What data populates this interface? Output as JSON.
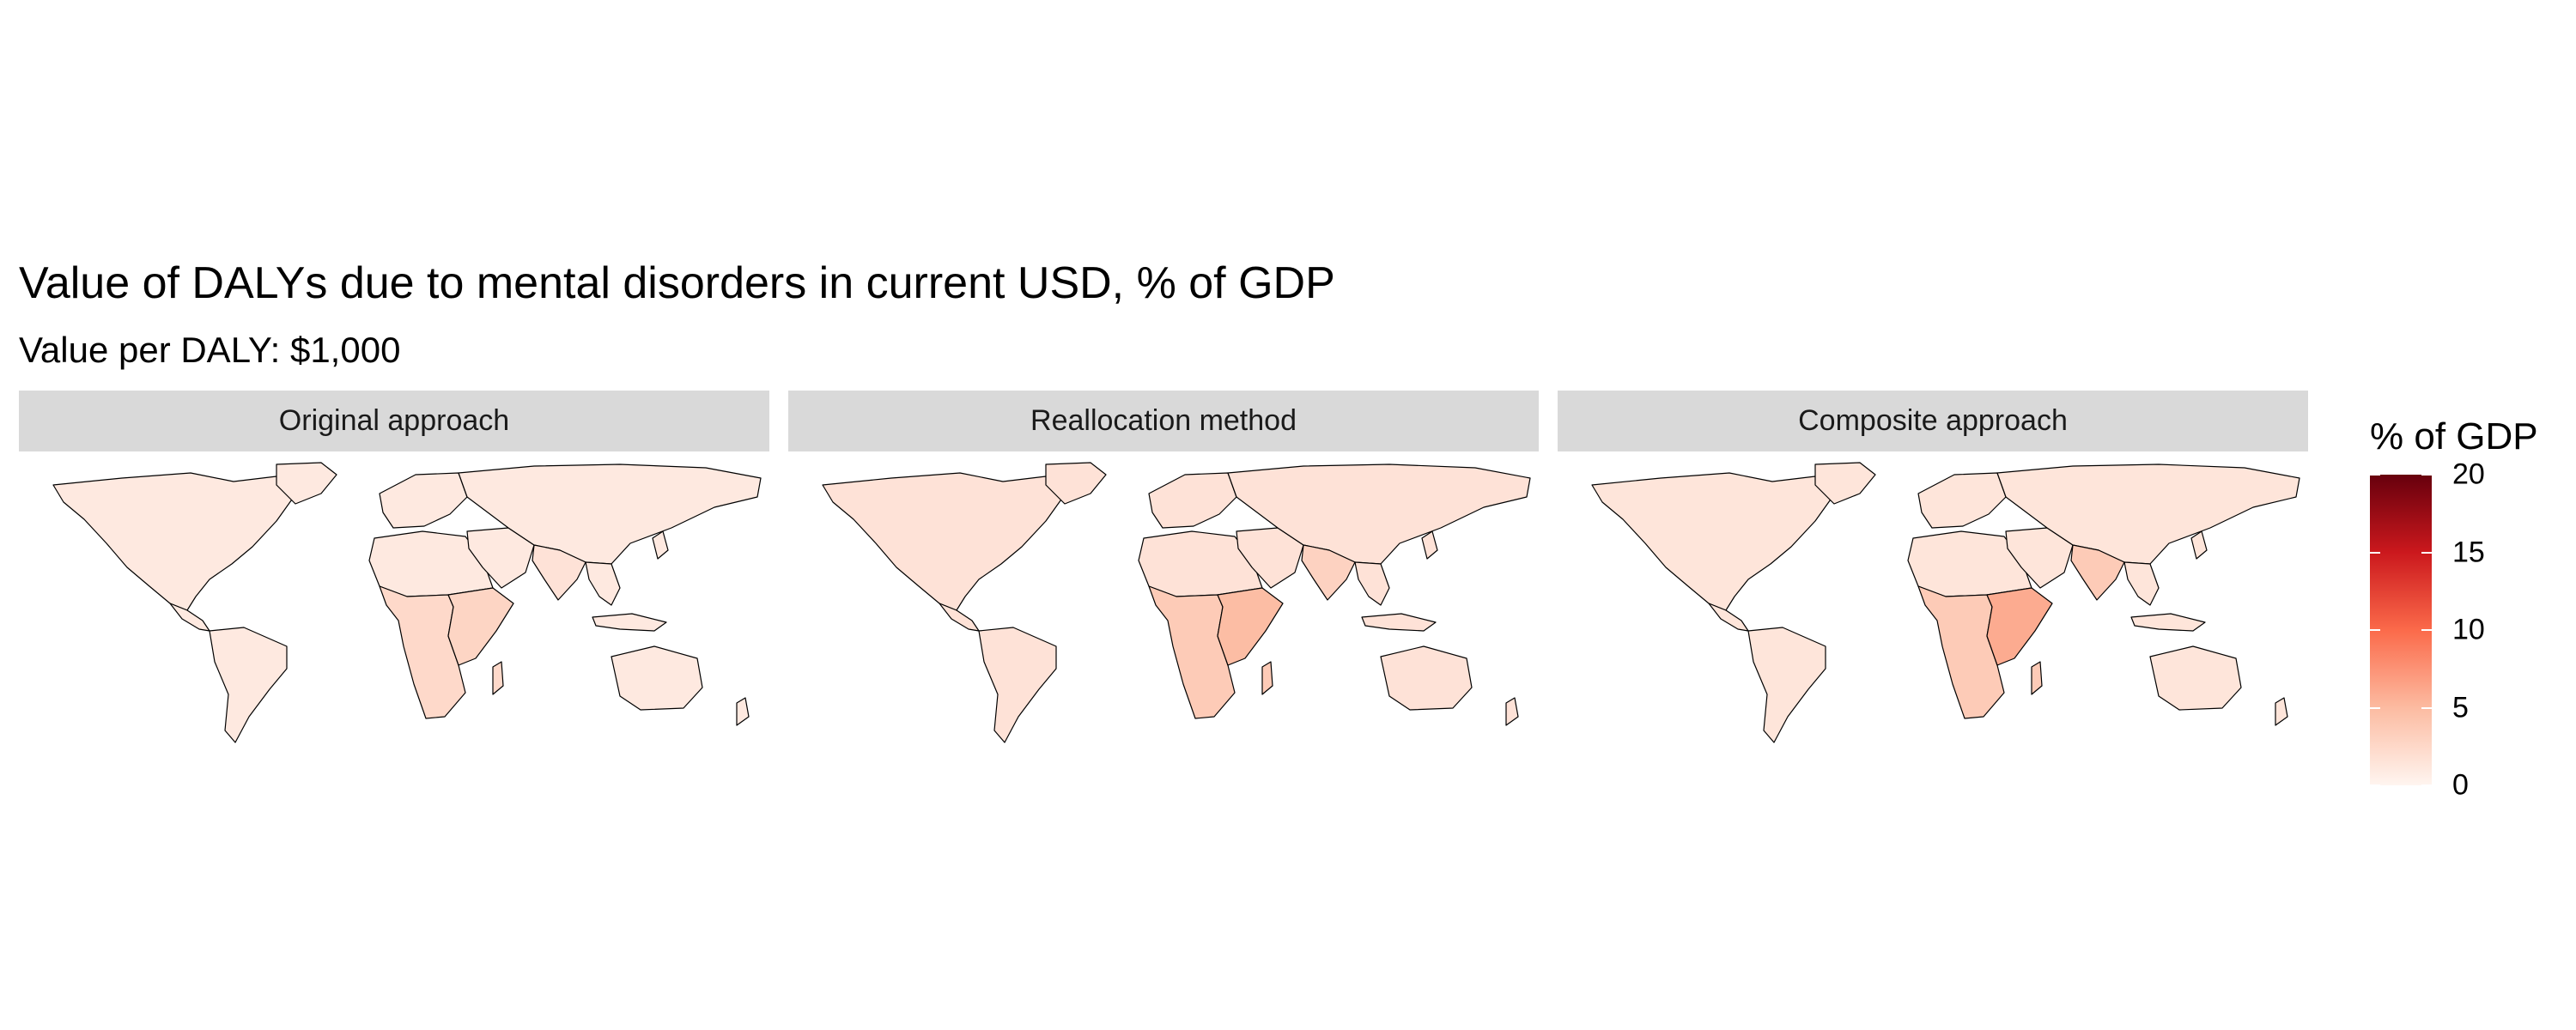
{
  "title": "Value of DALYs due to mental disorders in current USD, % of GDP",
  "subtitle": "Value per DALY: $1,000",
  "panels": [
    {
      "label": "Original approach",
      "shading": {
        "world": 0.05,
        "sub_saharan_africa": 0.12,
        "east_africa": 0.14,
        "south_asia": 0.08
      }
    },
    {
      "label": "Reallocation method",
      "shading": {
        "world": 0.08,
        "sub_saharan_africa": 0.18,
        "east_africa": 0.24,
        "south_asia": 0.15
      }
    },
    {
      "label": "Composite approach",
      "shading": {
        "world": 0.07,
        "sub_saharan_africa": 0.18,
        "east_africa": 0.3,
        "south_asia": 0.18
      }
    }
  ],
  "legend": {
    "title": "% of GDP",
    "min": 0,
    "max": 20,
    "ticks": [
      {
        "value": 0,
        "label": "0"
      },
      {
        "value": 5,
        "label": "5"
      },
      {
        "value": 10,
        "label": "10"
      },
      {
        "value": 15,
        "label": "15"
      },
      {
        "value": 20,
        "label": "20"
      }
    ],
    "colors": [
      "#fff5f0",
      "#fcbba1",
      "#fb6a4a",
      "#cb181d",
      "#67000d"
    ]
  }
}
